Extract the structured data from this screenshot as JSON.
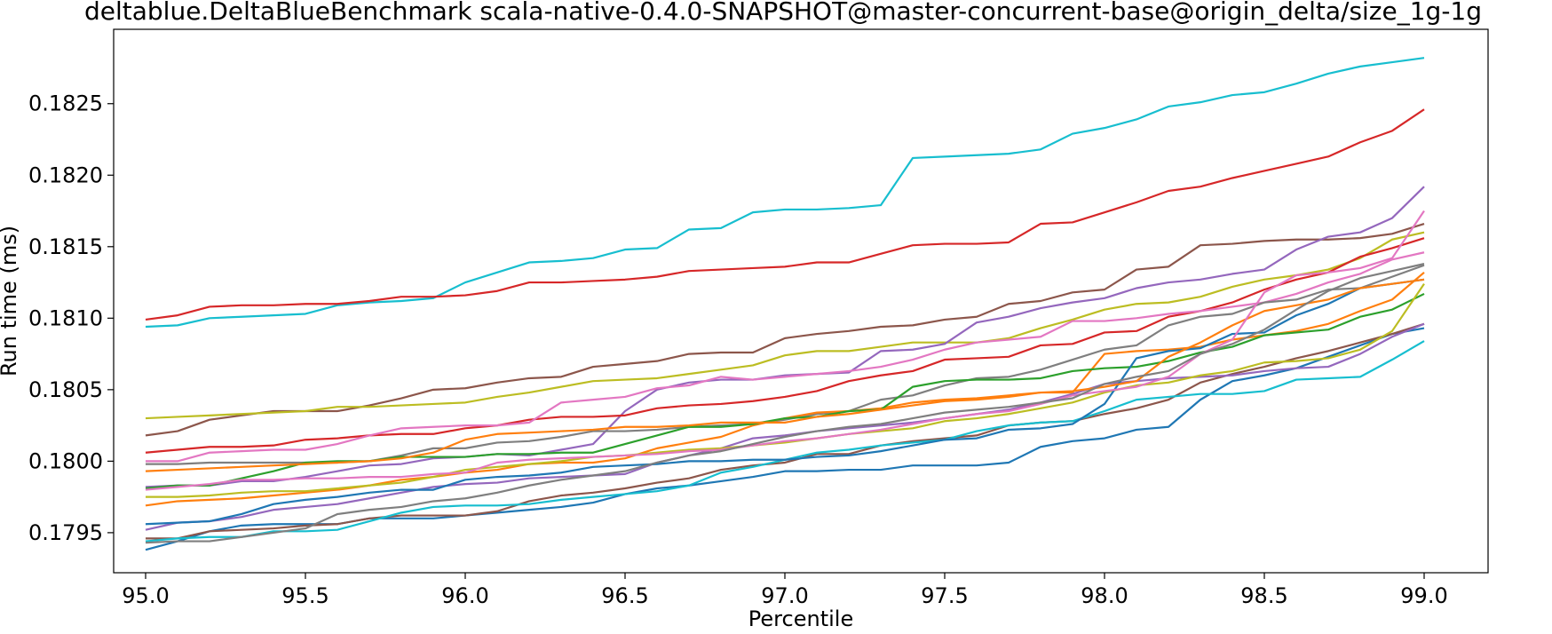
{
  "chart_data": {
    "type": "line",
    "title": "deltablue.DeltaBlueBenchmark scala-native-0.4.0-SNAPSHOT@master-concurrent-base@origin_delta/size_1g-1g",
    "xlabel": "Percentile",
    "ylabel": "Run time (ms)",
    "xlim": [
      94.9,
      99.2
    ],
    "ylim": [
      0.17922,
      0.18302
    ],
    "xticks": [
      "95.0",
      "95.5",
      "96.0",
      "96.5",
      "97.0",
      "97.5",
      "98.0",
      "98.5",
      "99.0"
    ],
    "xtick_values": [
      95.0,
      95.5,
      96.0,
      96.5,
      97.0,
      97.5,
      98.0,
      98.5,
      99.0
    ],
    "yticks": [
      "0.1795",
      "0.1800",
      "0.1805",
      "0.1810",
      "0.1815",
      "0.1820",
      "0.1825"
    ],
    "ytick_values": [
      0.1795,
      0.18,
      0.1805,
      0.181,
      0.1815,
      0.182,
      0.1825
    ],
    "grid": false,
    "legend": "none",
    "x": [
      95.0,
      95.1,
      95.2,
      95.3,
      95.4,
      95.5,
      95.6,
      95.7,
      95.8,
      95.9,
      96.0,
      96.1,
      96.2,
      96.3,
      96.4,
      96.5,
      96.6,
      96.7,
      96.8,
      96.9,
      97.0,
      97.1,
      97.2,
      97.3,
      97.4,
      97.5,
      97.6,
      97.7,
      97.8,
      97.9,
      98.0,
      98.1,
      98.2,
      98.3,
      98.4,
      98.5,
      98.6,
      98.7,
      98.8,
      98.9,
      99.0
    ],
    "series": [
      {
        "color": "#17becf",
        "values": [
          0.18094,
          0.18095,
          0.181,
          0.18101,
          0.18102,
          0.18103,
          0.18109,
          0.18111,
          0.18112,
          0.18114,
          0.18125,
          0.18132,
          0.18139,
          0.1814,
          0.18142,
          0.18148,
          0.18149,
          0.18162,
          0.18163,
          0.18174,
          0.18176,
          0.18176,
          0.18177,
          0.18179,
          0.18212,
          0.18213,
          0.18214,
          0.18215,
          0.18218,
          0.18229,
          0.18233,
          0.18239,
          0.18248,
          0.18251,
          0.18256,
          0.18258,
          0.18264,
          0.18271,
          0.18276,
          0.18279,
          0.18282
        ]
      },
      {
        "color": "#d62728",
        "values": [
          0.18099,
          0.18102,
          0.18108,
          0.18109,
          0.18109,
          0.1811,
          0.1811,
          0.18112,
          0.18115,
          0.18115,
          0.18116,
          0.18119,
          0.18125,
          0.18125,
          0.18126,
          0.18127,
          0.18129,
          0.18133,
          0.18134,
          0.18135,
          0.18136,
          0.18139,
          0.18139,
          0.18145,
          0.18151,
          0.18152,
          0.18152,
          0.18153,
          0.18166,
          0.18167,
          0.18174,
          0.18181,
          0.18189,
          0.18192,
          0.18198,
          0.18203,
          0.18208,
          0.18213,
          0.18223,
          0.18231,
          0.18246
        ]
      },
      {
        "color": "#8c564b",
        "values": [
          0.18018,
          0.18021,
          0.18029,
          0.18032,
          0.18035,
          0.18035,
          0.18035,
          0.18039,
          0.18044,
          0.1805,
          0.18051,
          0.18055,
          0.18058,
          0.18059,
          0.18066,
          0.18068,
          0.1807,
          0.18075,
          0.18076,
          0.18076,
          0.18086,
          0.18089,
          0.18091,
          0.18094,
          0.18095,
          0.18099,
          0.18101,
          0.1811,
          0.18112,
          0.18118,
          0.1812,
          0.18134,
          0.18136,
          0.18151,
          0.18152,
          0.18154,
          0.18155,
          0.18155,
          0.18156,
          0.18159,
          0.18166
        ]
      },
      {
        "color": "#bcbd22",
        "values": [
          0.1803,
          0.18031,
          0.18032,
          0.18033,
          0.18034,
          0.18035,
          0.18038,
          0.18038,
          0.18039,
          0.1804,
          0.18041,
          0.18045,
          0.18048,
          0.18052,
          0.18056,
          0.18057,
          0.18058,
          0.18061,
          0.18064,
          0.18067,
          0.18074,
          0.18077,
          0.18077,
          0.1808,
          0.18083,
          0.18083,
          0.18083,
          0.18086,
          0.18093,
          0.18099,
          0.18106,
          0.1811,
          0.18111,
          0.18115,
          0.18122,
          0.18127,
          0.1813,
          0.18134,
          0.18142,
          0.18155,
          0.1816
        ]
      },
      {
        "color": "#9467bd",
        "values": [
          0.17982,
          0.17983,
          0.17983,
          0.17986,
          0.17986,
          0.17989,
          0.17993,
          0.17997,
          0.17998,
          0.18002,
          0.18003,
          0.18005,
          0.18004,
          0.18008,
          0.18012,
          0.18035,
          0.1805,
          0.18055,
          0.18057,
          0.18057,
          0.1806,
          0.18061,
          0.18062,
          0.18077,
          0.18078,
          0.18082,
          0.18097,
          0.18101,
          0.18107,
          0.18111,
          0.18114,
          0.18121,
          0.18125,
          0.18127,
          0.18131,
          0.18134,
          0.18148,
          0.18157,
          0.1816,
          0.1817,
          0.18192
        ]
      },
      {
        "color": "#d62728",
        "values": [
          0.18006,
          0.18008,
          0.1801,
          0.1801,
          0.18011,
          0.18015,
          0.18016,
          0.18018,
          0.18019,
          0.18019,
          0.18023,
          0.18025,
          0.18029,
          0.18031,
          0.18031,
          0.18032,
          0.18037,
          0.18039,
          0.1804,
          0.18042,
          0.18045,
          0.18049,
          0.18056,
          0.1806,
          0.18063,
          0.18071,
          0.18072,
          0.18073,
          0.18081,
          0.18082,
          0.1809,
          0.18091,
          0.18101,
          0.18105,
          0.18111,
          0.1812,
          0.18127,
          0.18132,
          0.18143,
          0.18149,
          0.18156
        ]
      },
      {
        "color": "#e377c2",
        "values": [
          0.18,
          0.18,
          0.18006,
          0.18007,
          0.18008,
          0.18008,
          0.18012,
          0.18018,
          0.18023,
          0.18024,
          0.18025,
          0.18025,
          0.18027,
          0.18041,
          0.18043,
          0.18045,
          0.18051,
          0.18053,
          0.18059,
          0.18057,
          0.18059,
          0.18061,
          0.18063,
          0.18066,
          0.18071,
          0.18078,
          0.18083,
          0.18085,
          0.18087,
          0.18098,
          0.18098,
          0.181,
          0.18103,
          0.18105,
          0.18108,
          0.18111,
          0.18117,
          0.18125,
          0.18131,
          0.18141,
          0.18146
        ]
      },
      {
        "color": "#7f7f7f",
        "values": [
          0.17998,
          0.17998,
          0.17999,
          0.17999,
          0.17999,
          0.17999,
          0.17999,
          0.18,
          0.18004,
          0.18009,
          0.18009,
          0.18013,
          0.18014,
          0.18017,
          0.18021,
          0.18021,
          0.18022,
          0.18024,
          0.18025,
          0.18026,
          0.18029,
          0.18033,
          0.18035,
          0.18043,
          0.18046,
          0.18053,
          0.18058,
          0.18059,
          0.18064,
          0.18071,
          0.18078,
          0.18081,
          0.18095,
          0.18101,
          0.18103,
          0.18111,
          0.18113,
          0.1812,
          0.18121,
          0.18129,
          0.18137
        ]
      },
      {
        "color": "#1f77b4",
        "values": [
          0.17938,
          0.17944,
          0.17951,
          0.17955,
          0.17956,
          0.17956,
          0.17956,
          0.1796,
          0.1796,
          0.1796,
          0.17962,
          0.17964,
          0.17966,
          0.17968,
          0.17971,
          0.17977,
          0.17981,
          0.17983,
          0.17986,
          0.17989,
          0.17993,
          0.17993,
          0.17994,
          0.17994,
          0.17997,
          0.17997,
          0.17997,
          0.17999,
          0.1801,
          0.18014,
          0.18016,
          0.18022,
          0.18024,
          0.18043,
          0.18056,
          0.1806,
          0.18065,
          0.18073,
          0.18081,
          0.18089,
          0.18093
        ]
      },
      {
        "color": "#ff7f0e",
        "values": [
          0.17969,
          0.17972,
          0.17973,
          0.17974,
          0.17976,
          0.17978,
          0.1798,
          0.17983,
          0.17987,
          0.17989,
          0.17992,
          0.17994,
          0.17998,
          0.17999,
          0.17999,
          0.18002,
          0.18009,
          0.18013,
          0.18017,
          0.18025,
          0.1803,
          0.18034,
          0.18035,
          0.18037,
          0.18041,
          0.18043,
          0.18044,
          0.18046,
          0.18048,
          0.18048,
          0.18075,
          0.18077,
          0.18078,
          0.1808,
          0.18085,
          0.18088,
          0.18091,
          0.18096,
          0.18105,
          0.18113,
          0.18132
        ]
      },
      {
        "color": "#2ca02c",
        "values": [
          0.17981,
          0.17983,
          0.17983,
          0.17988,
          0.17993,
          0.17999,
          0.18,
          0.18,
          0.18003,
          0.18003,
          0.18003,
          0.18005,
          0.18005,
          0.18006,
          0.18006,
          0.18012,
          0.18018,
          0.18024,
          0.18024,
          0.18026,
          0.1803,
          0.18031,
          0.18035,
          0.18036,
          0.18052,
          0.18056,
          0.18057,
          0.18057,
          0.18058,
          0.18063,
          0.18065,
          0.18066,
          0.1807,
          0.18076,
          0.1808,
          0.18088,
          0.1809,
          0.18092,
          0.18101,
          0.18106,
          0.18117
        ]
      },
      {
        "color": "#8c564b",
        "values": [
          0.17946,
          0.17946,
          0.17951,
          0.17952,
          0.17953,
          0.17955,
          0.17956,
          0.1796,
          0.17962,
          0.17962,
          0.17962,
          0.17965,
          0.17972,
          0.17976,
          0.17978,
          0.17981,
          0.17985,
          0.17988,
          0.17994,
          0.17997,
          0.17999,
          0.18005,
          0.18005,
          0.18011,
          0.18014,
          0.18016,
          0.18018,
          0.18025,
          0.18027,
          0.18028,
          0.18033,
          0.18037,
          0.18043,
          0.18055,
          0.18061,
          0.18066,
          0.18072,
          0.18077,
          0.18083,
          0.18089,
          0.18096
        ]
      },
      {
        "color": "#9467bd",
        "values": [
          0.17952,
          0.17957,
          0.17958,
          0.17961,
          0.17966,
          0.17968,
          0.1797,
          0.17974,
          0.17978,
          0.17982,
          0.17984,
          0.17985,
          0.17988,
          0.17989,
          0.1799,
          0.17991,
          0.17999,
          0.18004,
          0.18009,
          0.18016,
          0.18018,
          0.18021,
          0.18023,
          0.18025,
          0.18027,
          0.1803,
          0.18033,
          0.18036,
          0.18041,
          0.18047,
          0.18054,
          0.18056,
          0.18058,
          0.18059,
          0.1806,
          0.18063,
          0.18065,
          0.18066,
          0.18075,
          0.18087,
          0.18096
        ]
      },
      {
        "color": "#bcbd22",
        "values": [
          0.17975,
          0.17975,
          0.17976,
          0.17978,
          0.17979,
          0.17979,
          0.17981,
          0.17983,
          0.17985,
          0.17989,
          0.17994,
          0.17996,
          0.17998,
          0.18,
          0.18003,
          0.18004,
          0.18006,
          0.18008,
          0.18009,
          0.18011,
          0.18013,
          0.18016,
          0.18019,
          0.18021,
          0.18023,
          0.18028,
          0.1803,
          0.18033,
          0.18037,
          0.18041,
          0.18048,
          0.18053,
          0.18055,
          0.1806,
          0.18063,
          0.18069,
          0.1807,
          0.18072,
          0.18078,
          0.18091,
          0.18124
        ]
      },
      {
        "color": "#17becf",
        "values": [
          0.17944,
          0.17946,
          0.17947,
          0.17947,
          0.17951,
          0.17951,
          0.17952,
          0.17958,
          0.17964,
          0.17968,
          0.17969,
          0.17969,
          0.1797,
          0.17973,
          0.17975,
          0.17977,
          0.17979,
          0.17983,
          0.17992,
          0.17996,
          0.18001,
          0.18006,
          0.18008,
          0.18011,
          0.18013,
          0.18015,
          0.18021,
          0.18025,
          0.18027,
          0.18028,
          0.18035,
          0.18043,
          0.18045,
          0.18047,
          0.18047,
          0.18049,
          0.18057,
          0.18058,
          0.18059,
          0.18071,
          0.18084
        ]
      },
      {
        "color": "#1f77b4",
        "values": [
          0.17956,
          0.17957,
          0.17958,
          0.17963,
          0.1797,
          0.17973,
          0.17975,
          0.17978,
          0.1798,
          0.1798,
          0.17987,
          0.17989,
          0.1799,
          0.17992,
          0.17996,
          0.17997,
          0.17998,
          0.18,
          0.18,
          0.18001,
          0.18001,
          0.18003,
          0.18004,
          0.18007,
          0.18011,
          0.18015,
          0.18016,
          0.18022,
          0.18023,
          0.18026,
          0.1804,
          0.18072,
          0.18077,
          0.18079,
          0.18089,
          0.1809,
          0.18102,
          0.1811,
          0.18121,
          0.18124,
          0.18127
        ]
      },
      {
        "color": "#ff7f0e",
        "values": [
          0.17993,
          0.17994,
          0.17995,
          0.17996,
          0.17997,
          0.17998,
          0.17999,
          0.18,
          0.18002,
          0.18006,
          0.18015,
          0.18019,
          0.1802,
          0.18021,
          0.18022,
          0.18024,
          0.18024,
          0.18025,
          0.18027,
          0.18027,
          0.18027,
          0.18031,
          0.18033,
          0.18036,
          0.18039,
          0.18042,
          0.18043,
          0.18045,
          0.18048,
          0.18049,
          0.18052,
          0.18056,
          0.18073,
          0.18083,
          0.18095,
          0.18105,
          0.18109,
          0.18113,
          0.18121,
          0.18124,
          0.18127
        ]
      },
      {
        "color": "#e377c2",
        "values": [
          0.1798,
          0.17982,
          0.17984,
          0.17987,
          0.17987,
          0.17988,
          0.17988,
          0.17989,
          0.17989,
          0.17991,
          0.17992,
          0.17999,
          0.18001,
          0.18002,
          0.18003,
          0.18004,
          0.18005,
          0.18007,
          0.18008,
          0.18011,
          0.18014,
          0.18016,
          0.18019,
          0.18022,
          0.18026,
          0.1803,
          0.18033,
          0.18035,
          0.1804,
          0.18046,
          0.18049,
          0.18052,
          0.18059,
          0.18075,
          0.18085,
          0.18118,
          0.1813,
          0.18132,
          0.18135,
          0.18142,
          0.18175
        ]
      },
      {
        "color": "#7f7f7f",
        "values": [
          0.17943,
          0.17944,
          0.17944,
          0.17947,
          0.1795,
          0.17953,
          0.17963,
          0.17966,
          0.17968,
          0.17972,
          0.17974,
          0.17978,
          0.17983,
          0.17987,
          0.1799,
          0.17993,
          0.17999,
          0.18004,
          0.18007,
          0.18012,
          0.18017,
          0.18021,
          0.18024,
          0.18026,
          0.1803,
          0.18034,
          0.18036,
          0.18038,
          0.18041,
          0.18044,
          0.18054,
          0.18059,
          0.18063,
          0.18075,
          0.18082,
          0.18092,
          0.18106,
          0.18119,
          0.18128,
          0.18133,
          0.18138
        ]
      }
    ]
  }
}
